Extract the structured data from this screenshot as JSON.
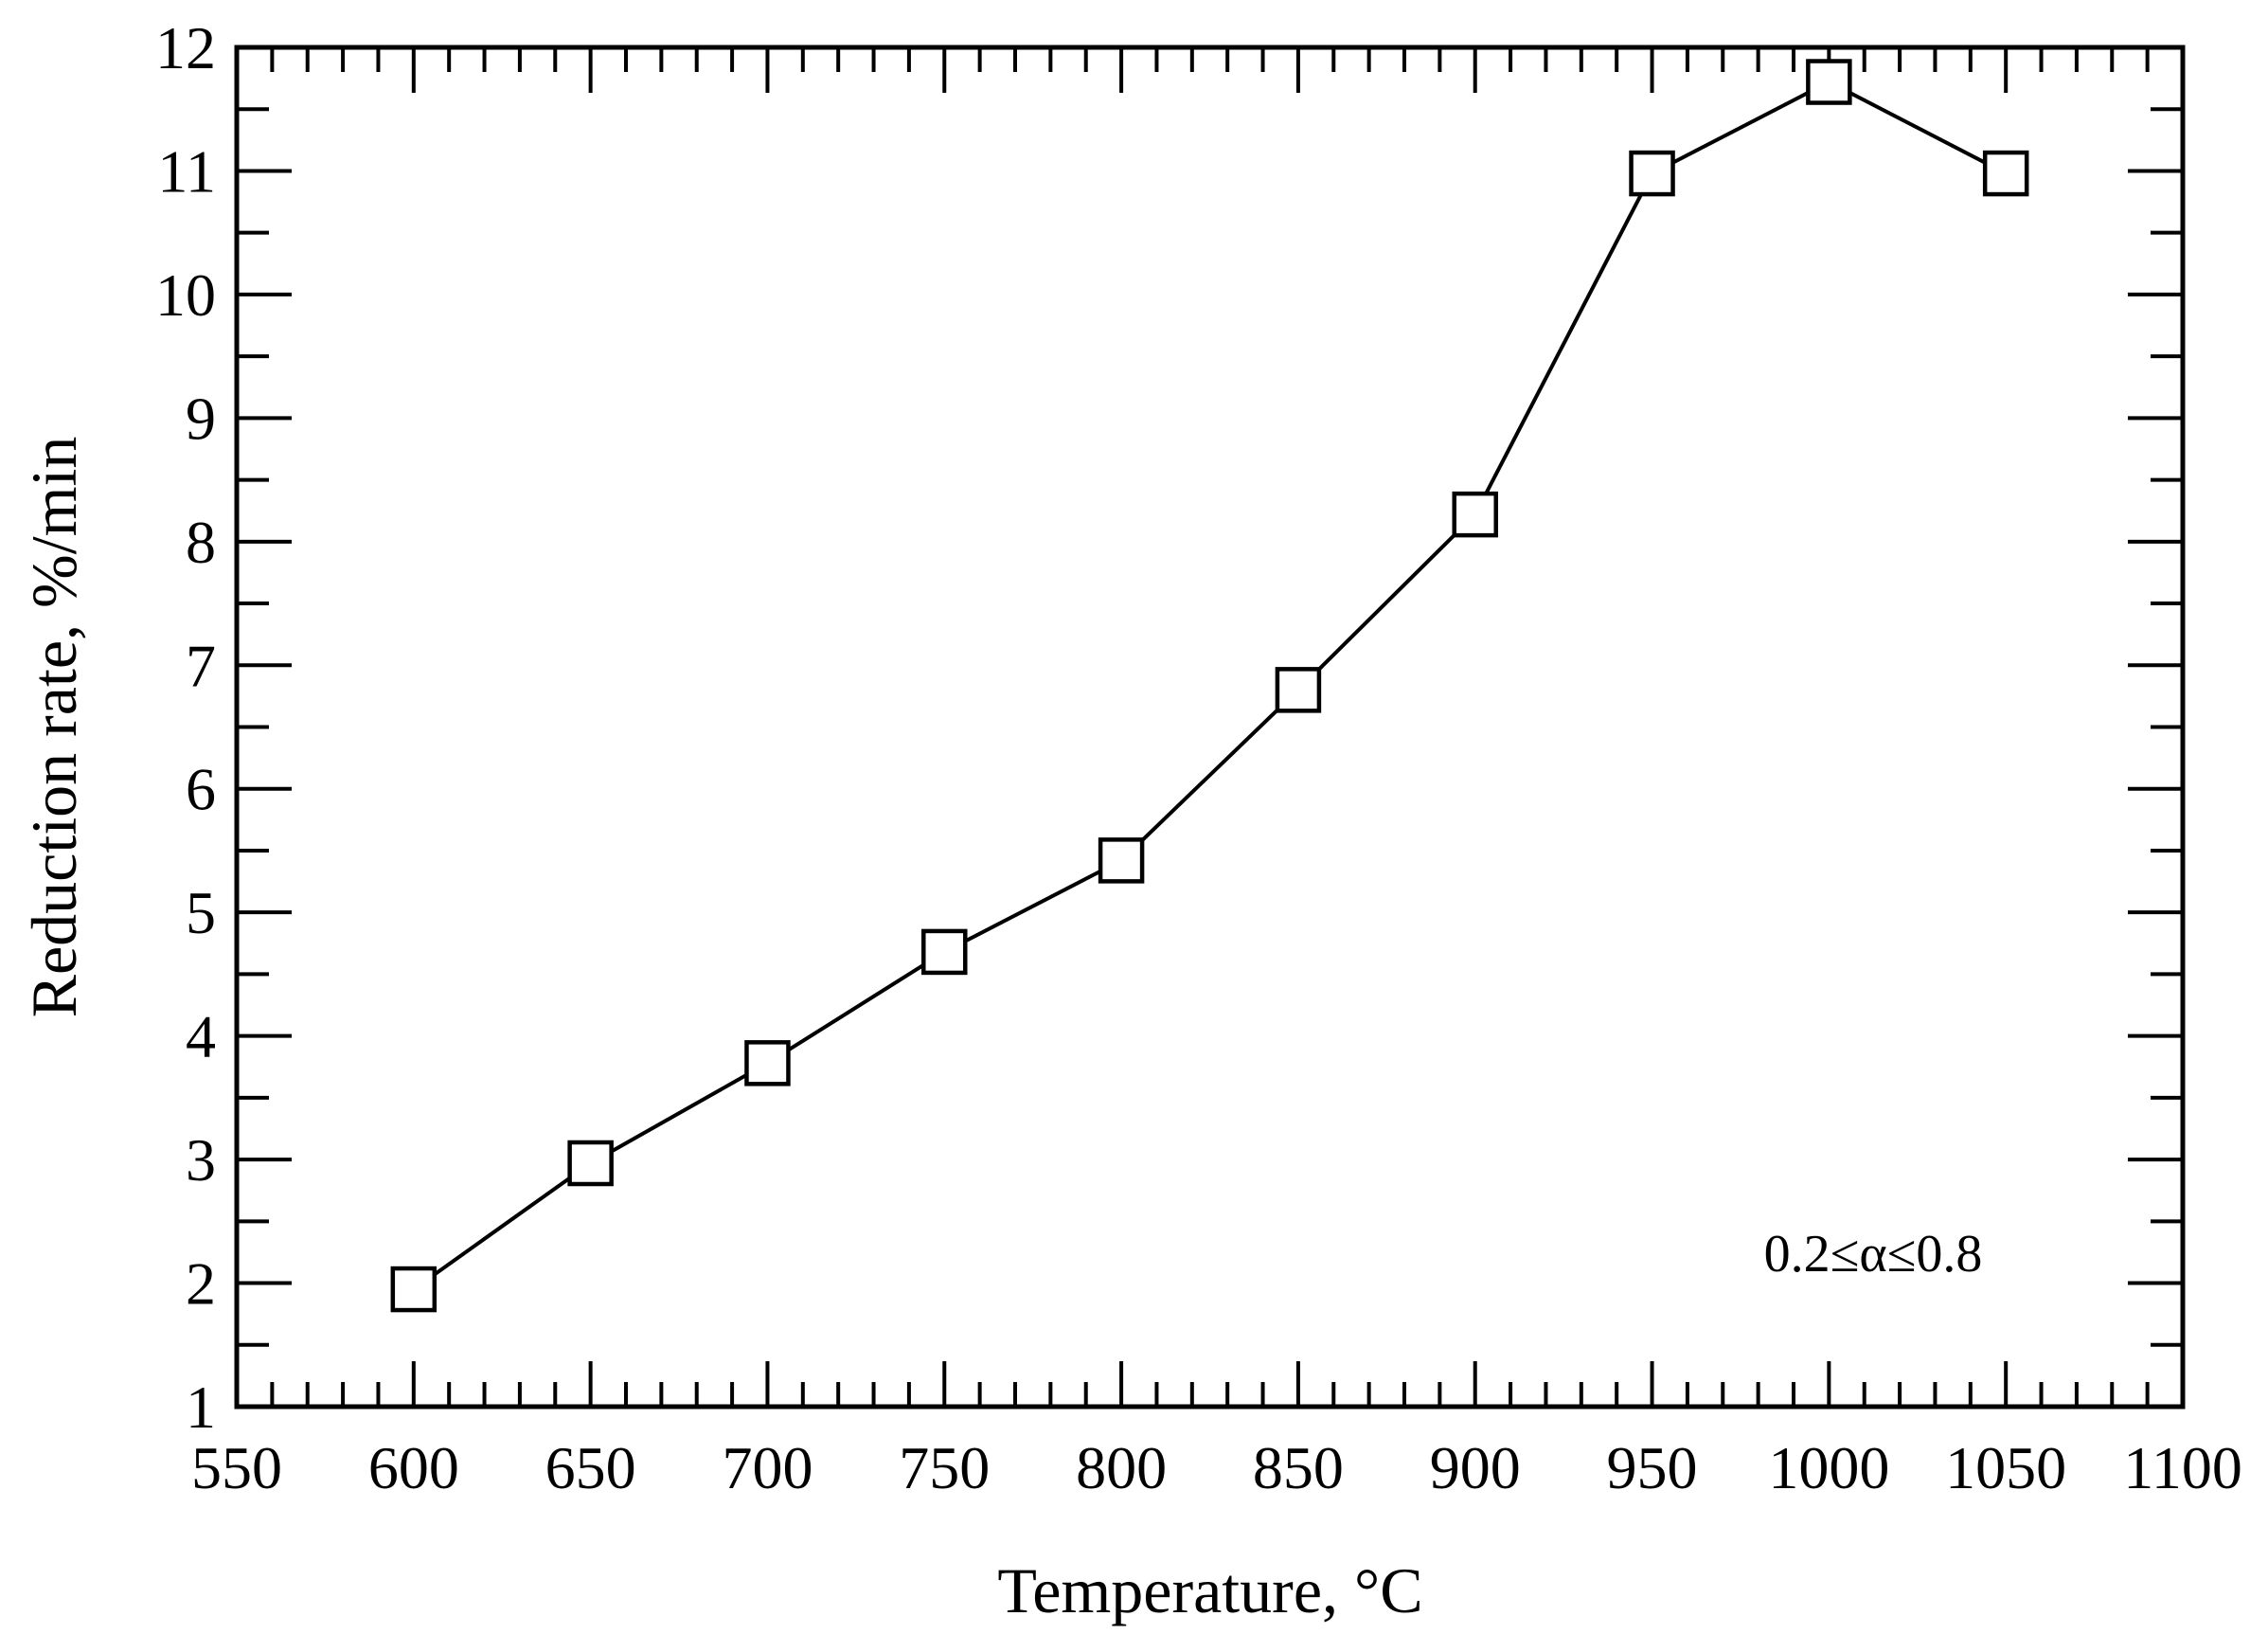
{
  "chart_data": {
    "type": "line",
    "title": "",
    "xlabel": "Temperature, °C",
    "ylabel": "Reduction rate, %/min",
    "xlim": [
      550,
      1100
    ],
    "ylim": [
      1,
      12
    ],
    "x_ticks": [
      550,
      600,
      650,
      700,
      750,
      800,
      850,
      900,
      950,
      1000,
      1050,
      1100
    ],
    "y_ticks": [
      1,
      2,
      3,
      4,
      5,
      6,
      7,
      8,
      9,
      10,
      11,
      12
    ],
    "grid": false,
    "marker": "open-square",
    "line_color": "#000000",
    "series": [
      {
        "x": [
          600,
          650,
          700,
          750,
          800,
          850,
          900,
          950,
          1000,
          1050
        ],
        "y": [
          1.95,
          2.97,
          3.78,
          4.68,
          5.42,
          6.8,
          8.22,
          10.98,
          11.72,
          10.98
        ]
      }
    ],
    "annotation": "0.2≤α≤0.8"
  }
}
